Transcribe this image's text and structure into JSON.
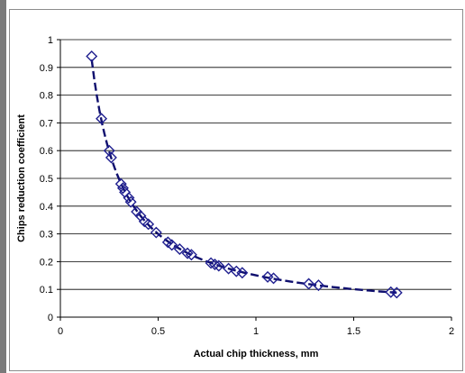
{
  "chart_data": {
    "type": "scatter",
    "title": "",
    "xlabel": "Actual chip thickness, mm",
    "ylabel": "Chips reduction coefficient",
    "xlim": [
      0,
      2
    ],
    "ylim": [
      0,
      1
    ],
    "xticks": [
      "0",
      "0.5",
      "1",
      "1.5",
      "2"
    ],
    "yticks": [
      "0",
      "0.1",
      "0.2",
      "0.3",
      "0.4",
      "0.5",
      "0.6",
      "0.7",
      "0.8",
      "0.9",
      "1"
    ],
    "grid": "horizontal",
    "legend": "none",
    "colors": {
      "marker": "#1f1f8f",
      "trend": "#0f0f6e",
      "grid": "#000000"
    },
    "marker_shape": "diamond",
    "trendline": "dashed",
    "series": [
      {
        "points": [
          [
            0.16,
            0.94
          ],
          [
            0.21,
            0.715
          ],
          [
            0.25,
            0.6
          ],
          [
            0.26,
            0.575
          ],
          [
            0.31,
            0.48
          ],
          [
            0.32,
            0.465
          ],
          [
            0.33,
            0.45
          ],
          [
            0.35,
            0.43
          ],
          [
            0.36,
            0.415
          ],
          [
            0.39,
            0.38
          ],
          [
            0.41,
            0.365
          ],
          [
            0.43,
            0.345
          ],
          [
            0.45,
            0.335
          ],
          [
            0.49,
            0.305
          ],
          [
            0.55,
            0.27
          ],
          [
            0.57,
            0.26
          ],
          [
            0.61,
            0.245
          ],
          [
            0.65,
            0.23
          ],
          [
            0.67,
            0.225
          ],
          [
            0.77,
            0.195
          ],
          [
            0.79,
            0.19
          ],
          [
            0.81,
            0.185
          ],
          [
            0.86,
            0.175
          ],
          [
            0.9,
            0.165
          ],
          [
            0.93,
            0.16
          ],
          [
            1.06,
            0.145
          ],
          [
            1.09,
            0.14
          ],
          [
            1.27,
            0.12
          ],
          [
            1.32,
            0.115
          ],
          [
            1.69,
            0.09
          ],
          [
            1.72,
            0.088
          ]
        ]
      }
    ]
  }
}
